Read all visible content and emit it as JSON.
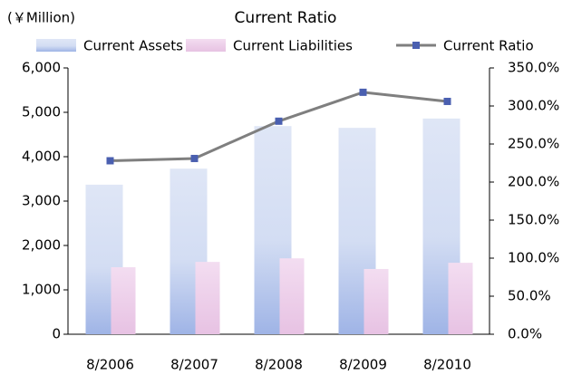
{
  "chart_data": {
    "type": "bar_line",
    "title": "Current Ratio",
    "unit_label": "(￥Million)",
    "categories": [
      "8/2006",
      "8/2007",
      "8/2008",
      "8/2009",
      "8/2010"
    ],
    "series": [
      {
        "name": "Current Assets",
        "color": "#c5d2ef",
        "values": [
          3370,
          3730,
          4690,
          4650,
          4860
        ]
      },
      {
        "name": "Current Liabilities",
        "color": "#ecc9e8",
        "values": [
          1510,
          1630,
          1710,
          1470,
          1610
        ]
      },
      {
        "name": "Current Ratio",
        "color": "#7f7f7f",
        "marker_color": "#4a5fb0",
        "axis": "y2",
        "values": [
          228,
          231,
          280,
          318,
          306
        ]
      }
    ],
    "ylim": [
      0,
      6000
    ],
    "yticks": [
      0,
      {
        "value": 1000,
        "label": "1,000"
      },
      {
        "value": 2000,
        "label": "2,000"
      },
      {
        "value": 3000,
        "label": "3,000"
      },
      {
        "value": 4000,
        "label": "4,000"
      },
      {
        "value": 5000,
        "label": "5,000"
      },
      {
        "value": 6000,
        "label": "6,000"
      }
    ],
    "y2lim": [
      0,
      350
    ],
    "y2ticks": [
      {
        "value": 0,
        "label": "0.0%"
      },
      {
        "value": 50,
        "label": "50.0%"
      },
      {
        "value": 100,
        "label": "100.0%"
      },
      {
        "value": 150,
        "label": "150.0%"
      },
      {
        "value": 200,
        "label": "200.0%"
      },
      {
        "value": 250,
        "label": "250.0%"
      },
      {
        "value": 300,
        "label": "300.0%"
      },
      {
        "value": 350,
        "label": "350.0%"
      }
    ],
    "grid": false
  }
}
